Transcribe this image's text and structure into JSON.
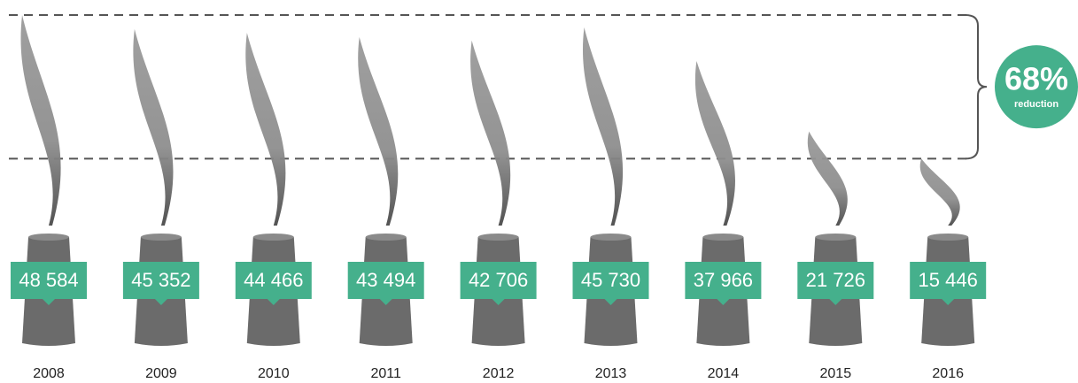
{
  "chart_data": {
    "type": "pictorial",
    "categories": [
      "2008",
      "2009",
      "2010",
      "2011",
      "2012",
      "2013",
      "2014",
      "2015",
      "2016"
    ],
    "values": [
      48584,
      45352,
      44466,
      43494,
      42706,
      45730,
      37966,
      21726,
      15446
    ],
    "value_labels": [
      "48 584",
      "45 352",
      "44 466",
      "43 494",
      "42 706",
      "45 730",
      "37 966",
      "21 726",
      "15 446"
    ],
    "color": "#45b08c",
    "smoke_color": "#8a8a8a",
    "chimney_color": "#6b6b6b",
    "reduction": {
      "value": 68,
      "label": "68%"
    },
    "reduction_text": "reduction"
  }
}
